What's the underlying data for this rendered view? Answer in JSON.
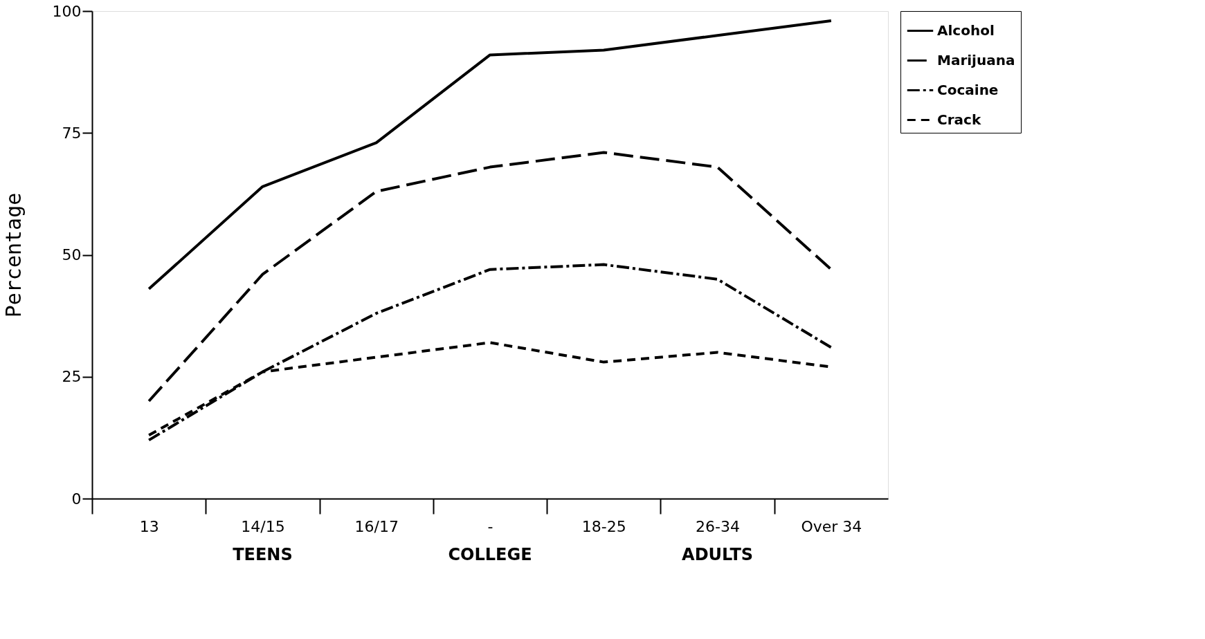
{
  "chart_data": {
    "type": "line",
    "ylabel": "Percentage",
    "categories": [
      "13",
      "14/15",
      "16/17",
      "-",
      "18-25",
      "26-34",
      "Over 34"
    ],
    "annotations": [
      "TEENS",
      "COLLEGE",
      "ADULTS"
    ],
    "ylim": [
      0,
      100
    ],
    "yticks": [
      0,
      25,
      50,
      75,
      100
    ],
    "grid": false,
    "legend": "top right",
    "marker": "none",
    "series": [
      {
        "name": "Alcohol",
        "color": "#000000",
        "line_style": "solid",
        "values": [
          43,
          64,
          73,
          91,
          92,
          95,
          98
        ]
      },
      {
        "name": "Marijuana",
        "color": "#000000",
        "line_style": "longdash",
        "values": [
          20,
          46,
          63,
          68,
          71,
          68,
          47
        ]
      },
      {
        "name": "Cocaine",
        "color": "#000000",
        "line_style": "dashdot",
        "values": [
          12,
          26,
          38,
          47,
          48,
          45,
          31
        ]
      },
      {
        "name": "Crack",
        "color": "#000000",
        "line_style": "dashed",
        "values": [
          13,
          26,
          29,
          32,
          28,
          30,
          27
        ]
      }
    ]
  }
}
